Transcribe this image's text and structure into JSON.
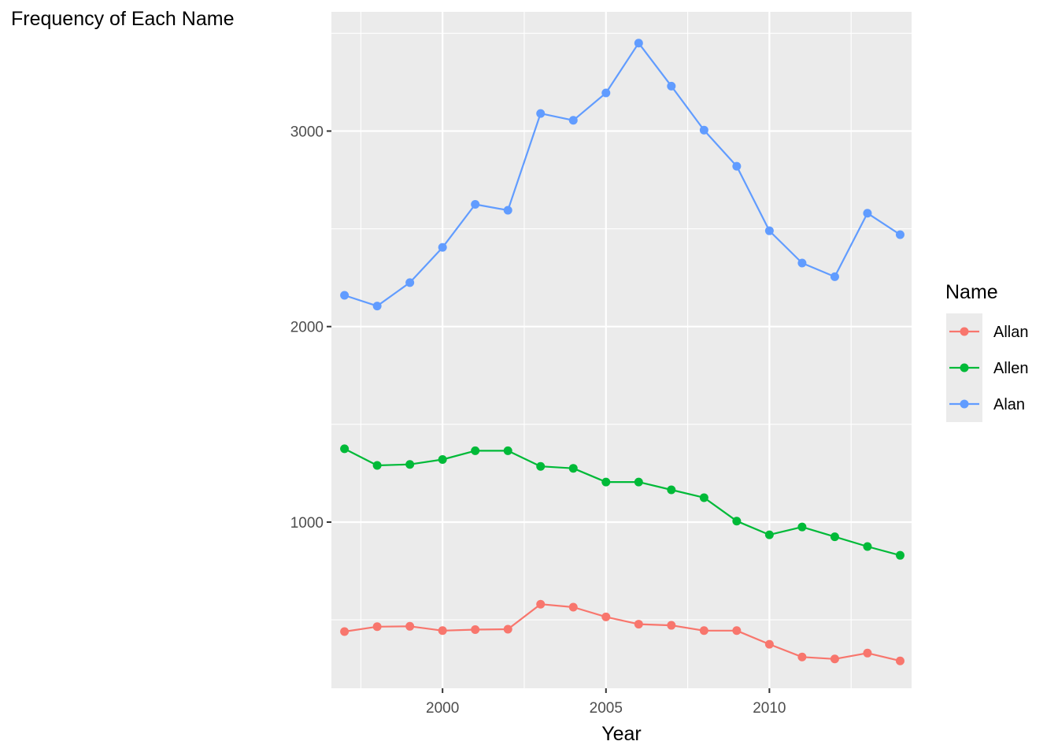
{
  "chart_data": {
    "type": "line",
    "title": "Frequency of Each Name",
    "xlabel": "Year",
    "ylabel": "",
    "x": [
      1997,
      1998,
      1999,
      2000,
      2001,
      2002,
      2003,
      2004,
      2005,
      2006,
      2007,
      2008,
      2009,
      2010,
      2011,
      2012,
      2013,
      2014
    ],
    "xlim": [
      1996.6,
      2014.35
    ],
    "ylim": [
      150,
      3610
    ],
    "x_ticks": [
      2000,
      2005,
      2010
    ],
    "x_tick_labels": [
      "2000",
      "2005",
      "2010"
    ],
    "y_ticks": [
      1000,
      2000,
      3000
    ],
    "y_tick_labels": [
      "1000",
      "2000",
      "3000"
    ],
    "grid": true,
    "legend": {
      "title": "Name",
      "position": "right"
    },
    "series": [
      {
        "name": "Allan",
        "color": "#F8766D",
        "values": [
          440,
          465,
          467,
          445,
          450,
          452,
          580,
          565,
          515,
          478,
          472,
          445,
          445,
          375,
          310,
          300,
          330,
          290
        ]
      },
      {
        "name": "Allen",
        "color": "#00BA38",
        "values": [
          1375,
          1290,
          1295,
          1320,
          1365,
          1365,
          1285,
          1275,
          1205,
          1205,
          1165,
          1125,
          1005,
          935,
          975,
          925,
          875,
          830
        ]
      },
      {
        "name": "Alan",
        "color": "#619CFF",
        "values": [
          2160,
          2105,
          2225,
          2405,
          2625,
          2595,
          3090,
          3055,
          3195,
          3450,
          3230,
          3005,
          2820,
          2490,
          2325,
          2255,
          2580,
          2470
        ]
      }
    ]
  }
}
